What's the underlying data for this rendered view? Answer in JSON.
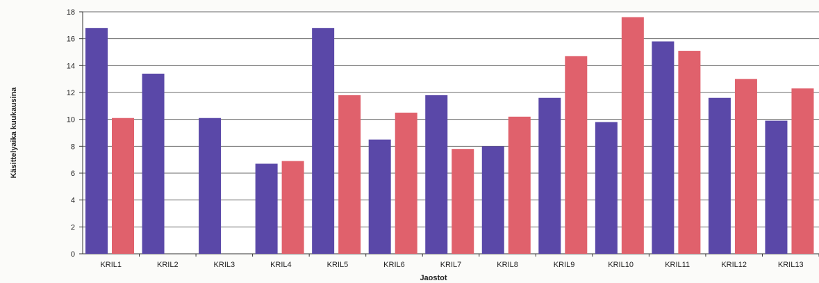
{
  "chart_data": {
    "type": "bar",
    "title": "",
    "xlabel": "Jaostot",
    "ylabel": "Käsittelyaika kuukausina",
    "ylim": [
      0,
      18
    ],
    "yticks": [
      0,
      2,
      4,
      6,
      8,
      10,
      12,
      14,
      16,
      18
    ],
    "grid": true,
    "legend": "none",
    "categories": [
      "KRIL1",
      "KRIL2",
      "KRIL3",
      "KRIL4",
      "KRIL5",
      "KRIL6",
      "KRIL7",
      "KRIL8",
      "KRIL9",
      "KRIL10",
      "KRIL11",
      "KRIL12",
      "KRIL13"
    ],
    "series": [
      {
        "color": "#5a48a8",
        "values": [
          16.8,
          13.4,
          10.1,
          6.7,
          16.8,
          8.5,
          11.8,
          8.0,
          11.6,
          9.8,
          15.8,
          11.6,
          9.9
        ]
      },
      {
        "color": "#e0616c",
        "values": [
          10.1,
          null,
          null,
          6.9,
          11.8,
          10.5,
          7.8,
          10.2,
          14.7,
          17.6,
          15.1,
          13.0,
          12.3
        ]
      }
    ]
  }
}
